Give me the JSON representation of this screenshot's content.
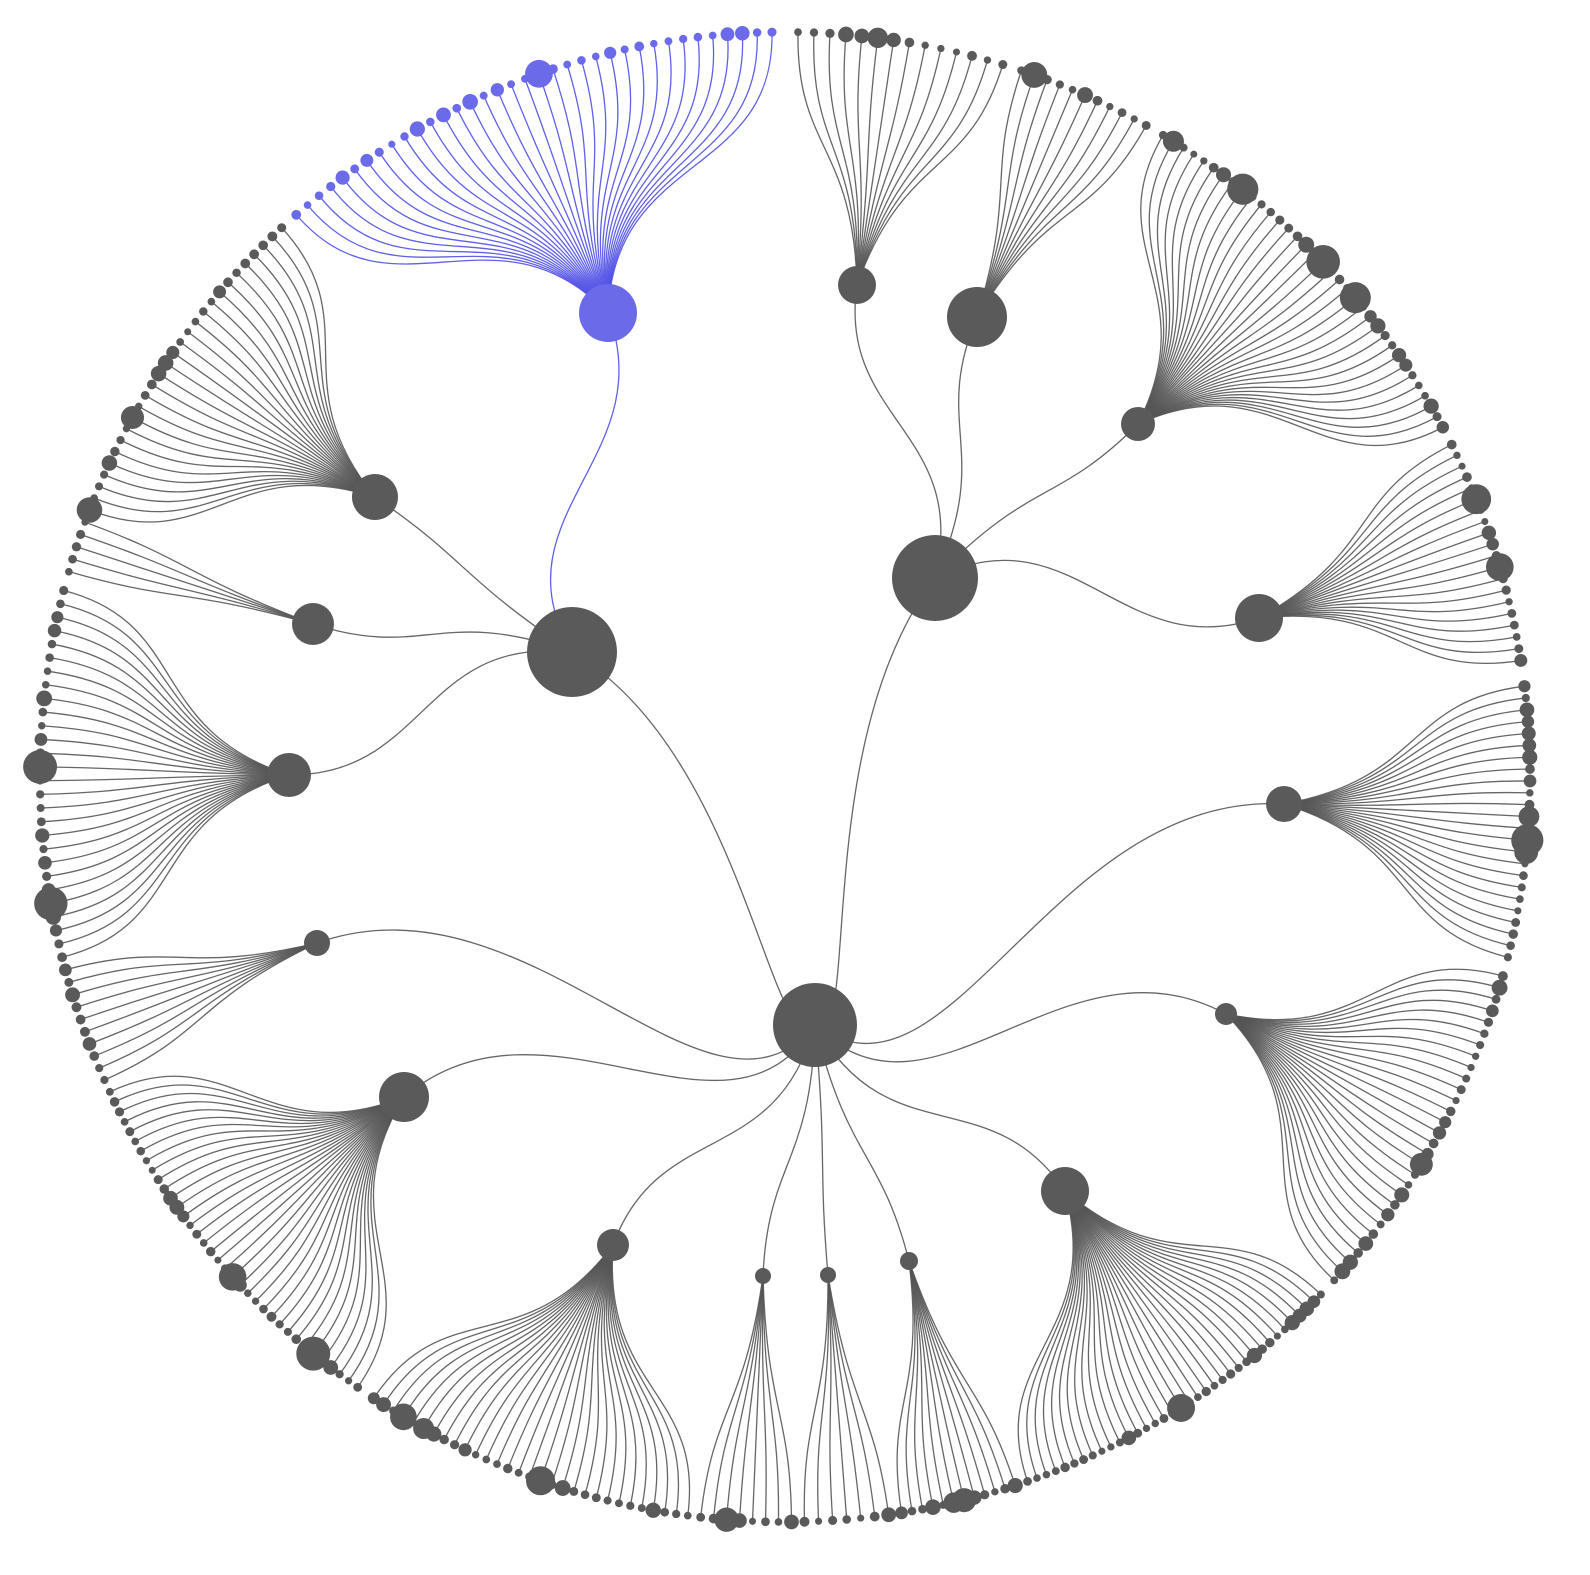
{
  "colors": {
    "node": "#5a5a5a",
    "link": "#555555",
    "highlight_node": "#6b6bea",
    "highlight_link": "#4f4fe6",
    "background": "#ffffff"
  },
  "tree": {
    "root": {
      "children": [
        {
          "id": "a",
          "children": [
            {
              "id": "a1",
              "leaves": 36,
              "highlighted": true
            },
            {
              "id": "a2",
              "leaves": 28
            },
            {
              "id": "a3",
              "leaves": 5
            },
            {
              "id": "a4",
              "leaves": 28
            }
          ]
        },
        {
          "id": "b",
          "children": [
            {
              "id": "b1",
              "leaves": 14
            },
            {
              "id": "b2",
              "leaves": 11
            },
            {
              "id": "b3",
              "leaves": 35
            },
            {
              "id": "b4",
              "leaves": 20
            }
          ]
        },
        {
          "id": "c1",
          "leaves": 24
        },
        {
          "id": "c2",
          "leaves": 30
        },
        {
          "id": "c3",
          "leaves": 36
        },
        {
          "id": "c4",
          "leaves": 12
        },
        {
          "id": "c5",
          "leaves": 7
        },
        {
          "id": "c6",
          "leaves": 8
        },
        {
          "id": "c7",
          "leaves": 30
        },
        {
          "id": "c8",
          "leaves": 36
        },
        {
          "id": "c9",
          "leaves": 10
        }
      ]
    }
  }
}
